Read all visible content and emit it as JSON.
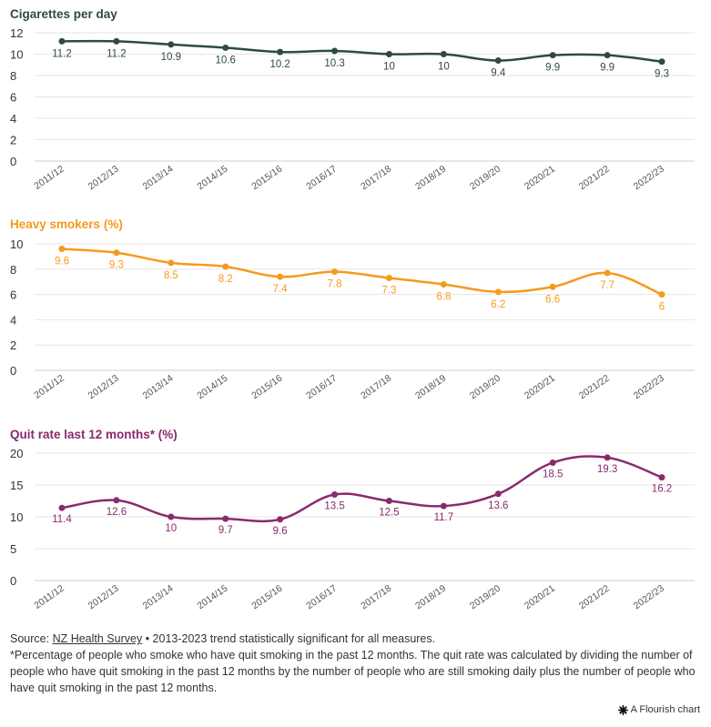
{
  "colors": {
    "cigarettes": "#2f4a45",
    "heavy": "#f59a1c",
    "quit": "#8a2a6e",
    "grid": "#e6e6e6",
    "text": "#333333"
  },
  "chart_data": [
    {
      "type": "line",
      "title": "Cigarettes per day",
      "categories": [
        "2011/12",
        "2012/13",
        "2013/14",
        "2014/15",
        "2015/16",
        "2016/17",
        "2017/18",
        "2018/19",
        "2019/20",
        "2020/21",
        "2021/22",
        "2022/23"
      ],
      "values": [
        11.2,
        11.2,
        10.9,
        10.6,
        10.2,
        10.3,
        10,
        10,
        9.4,
        9.9,
        9.9,
        9.3
      ],
      "yticks": [
        0,
        2,
        4,
        6,
        8,
        10,
        12
      ],
      "ylim": [
        0,
        12
      ],
      "color_key": "cigarettes",
      "grid": true
    },
    {
      "type": "line",
      "title": "Heavy smokers (%)",
      "categories": [
        "2011/12",
        "2012/13",
        "2013/14",
        "2014/15",
        "2015/16",
        "2016/17",
        "2017/18",
        "2018/19",
        "2019/20",
        "2020/21",
        "2021/22",
        "2022/23"
      ],
      "values": [
        9.6,
        9.3,
        8.5,
        8.2,
        7.4,
        7.8,
        7.3,
        6.8,
        6.2,
        6.6,
        7.7,
        6
      ],
      "yticks": [
        0,
        2,
        4,
        6,
        8,
        10
      ],
      "ylim": [
        0,
        10
      ],
      "color_key": "heavy",
      "grid": true
    },
    {
      "type": "line",
      "title": "Quit rate last 12 months* (%)",
      "categories": [
        "2011/12",
        "2012/13",
        "2013/14",
        "2014/15",
        "2015/16",
        "2016/17",
        "2017/18",
        "2018/19",
        "2019/20",
        "2020/21",
        "2021/22",
        "2022/23"
      ],
      "values": [
        11.4,
        12.6,
        10,
        9.7,
        9.6,
        13.5,
        12.5,
        11.7,
        13.6,
        18.5,
        19.3,
        16.2
      ],
      "yticks": [
        0,
        5,
        10,
        15,
        20
      ],
      "ylim": [
        0,
        20
      ],
      "color_key": "quit",
      "grid": true
    }
  ],
  "footer": {
    "source_label": "Source: ",
    "source_link": "NZ Health Survey",
    "source_note": " • 2013-2023 trend statistically significant for all measures.",
    "footnote": "*Percentage of people who smoke who have quit smoking in the past 12 months. The quit rate was calculated by dividing the number of people who have quit smoking in the past 12 months by the number of people who are still smoking daily plus the number of people who have quit smoking in the past 12 months."
  },
  "branding": {
    "label": "A Flourish chart",
    "icon": "flourish-asterisk-icon"
  }
}
